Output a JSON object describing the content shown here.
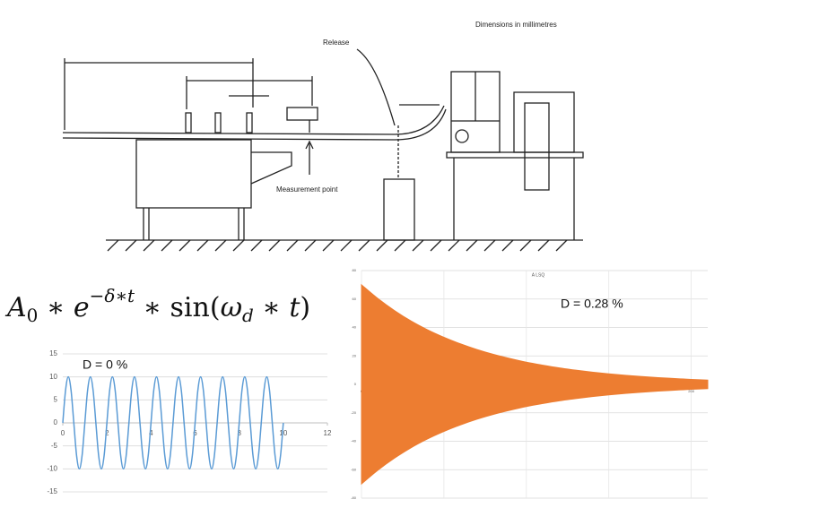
{
  "drawing": {
    "note": "Dimensions in millimetres",
    "release": "Release",
    "measurement": "Measurement point"
  },
  "formula": {
    "parts": [
      "A",
      "0",
      " ∗ ",
      "e",
      "−δ∗t",
      " ∗ sin(",
      "ω",
      "d",
      " ∗ ",
      "t",
      ")"
    ]
  },
  "chart_data": [
    {
      "type": "line",
      "annotation": "D = 0 %",
      "color": "#5b9bd5",
      "grid": true,
      "xlim": [
        0,
        12
      ],
      "xticks": [
        0,
        2,
        4,
        6,
        8,
        10,
        12
      ],
      "ylim": [
        -15,
        15
      ],
      "yticks": [
        -15,
        -10,
        -5,
        0,
        5,
        10,
        15
      ],
      "x": [
        0,
        0.125,
        0.25,
        0.375,
        0.5,
        0.625,
        0.75,
        0.875,
        1,
        1.125,
        1.25,
        1.375,
        1.5,
        1.625,
        1.75,
        1.875,
        2,
        2.125,
        2.25,
        2.375,
        2.5,
        2.625,
        2.75,
        2.875,
        3,
        3.125,
        3.25,
        3.375,
        3.5,
        3.625,
        3.75,
        3.875,
        4,
        4.125,
        4.25,
        4.375,
        4.5,
        4.625,
        4.75,
        4.875,
        5,
        5.125,
        5.25,
        5.375,
        5.5,
        5.625,
        5.75,
        5.875,
        6,
        6.125,
        6.25,
        6.375,
        6.5,
        6.625,
        6.75,
        6.875,
        7,
        7.125,
        7.25,
        7.375,
        7.5,
        7.625,
        7.75,
        7.875,
        8,
        8.125,
        8.25,
        8.375,
        8.5,
        8.625,
        8.75,
        8.875,
        9,
        9.125,
        9.25,
        9.375,
        9.5,
        9.625,
        9.75,
        9.875,
        10
      ],
      "values": [
        0,
        7.07,
        10,
        7.07,
        0,
        -7.07,
        -10,
        -7.07,
        0,
        7.07,
        10,
        7.07,
        0,
        -7.07,
        -10,
        -7.07,
        0,
        7.07,
        10,
        7.07,
        0,
        -7.07,
        -10,
        -7.07,
        0,
        7.07,
        10,
        7.07,
        0,
        -7.07,
        -10,
        -7.07,
        0,
        7.07,
        10,
        7.07,
        0,
        -7.07,
        -10,
        -7.07,
        0,
        7.07,
        10,
        7.07,
        0,
        -7.07,
        -10,
        -7.07,
        0,
        7.07,
        10,
        7.07,
        0,
        -7.07,
        -10,
        -7.07,
        0,
        7.07,
        10,
        7.07,
        0,
        -7.07,
        -10,
        -7.07,
        0,
        7.07,
        10,
        7.07,
        0,
        -7.07,
        -10,
        -7.07,
        0,
        7.07,
        10,
        7.07,
        0,
        -7.07,
        -10,
        -7.07,
        0
      ]
    },
    {
      "type": "band",
      "title": "A LSQ",
      "annotation": "D = 0.28 %",
      "color": "#ed7d31",
      "grid": true,
      "xlim": [
        0,
        210
      ],
      "xticks": [
        0,
        50,
        100,
        150,
        200
      ],
      "ylim": [
        -80,
        80
      ],
      "yticks": [
        -80,
        -60,
        -40,
        -20,
        0,
        20,
        40,
        60,
        80
      ],
      "x": [
        0,
        10,
        20,
        30,
        40,
        50,
        60,
        70,
        80,
        90,
        100,
        110,
        120,
        130,
        140,
        150,
        160,
        170,
        180,
        190,
        200,
        210
      ],
      "upper": [
        70,
        60.3,
        51.9,
        44.6,
        38.4,
        33.1,
        28.5,
        24.5,
        21.1,
        18.2,
        15.6,
        13.5,
        11.6,
        10,
        8.6,
        7.4,
        6.4,
        5.5,
        4.7,
        4.1,
        3.5,
        3
      ],
      "lower": [
        -70,
        -60.3,
        -51.9,
        -44.6,
        -38.4,
        -33.1,
        -28.5,
        -24.5,
        -21.1,
        -18.2,
        -15.6,
        -13.5,
        -11.6,
        -10,
        -8.6,
        -7.4,
        -6.4,
        -5.5,
        -4.7,
        -4.1,
        -3.5,
        -3
      ]
    }
  ]
}
